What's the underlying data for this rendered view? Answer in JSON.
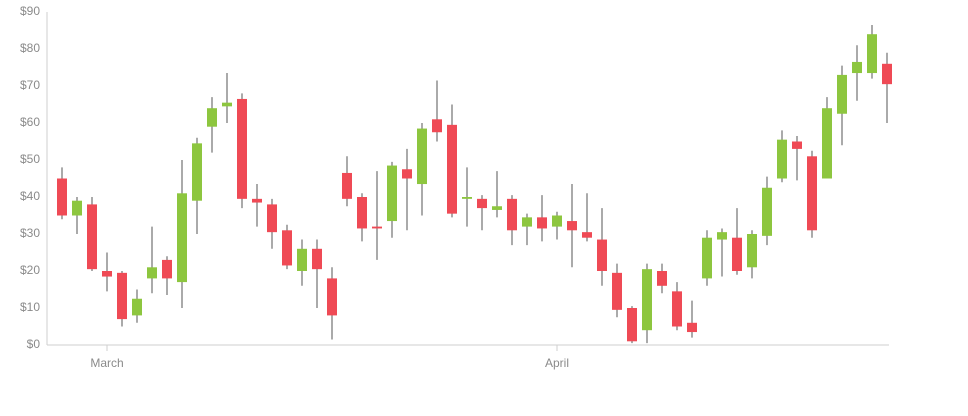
{
  "chart_data": {
    "type": "candlestick",
    "categories": [
      null,
      null,
      null,
      "March",
      null,
      null,
      null,
      null,
      null,
      null,
      null,
      null,
      null,
      null,
      null,
      null,
      null,
      null,
      null,
      null,
      null,
      null,
      null,
      null,
      null,
      null,
      null,
      null,
      null,
      null,
      null,
      null,
      null,
      "April",
      null,
      null,
      null,
      null,
      null,
      null,
      null,
      null,
      null,
      null,
      null,
      null,
      null,
      null,
      null,
      null,
      null,
      null,
      null,
      null,
      null,
      null
    ],
    "open": [
      45,
      35,
      38,
      20,
      19.5,
      8,
      18,
      23,
      17,
      39,
      59,
      64.5,
      66.5,
      39.5,
      38,
      31,
      20,
      26,
      18,
      46.5,
      40,
      32,
      33.5,
      47.5,
      43.5,
      61,
      59.5,
      39.5,
      39.5,
      36.5,
      39.5,
      32,
      34.5,
      32,
      33.5,
      30.5,
      28.5,
      19.5,
      10,
      4,
      20,
      14.5,
      6,
      18,
      28.5,
      29,
      21,
      29.5,
      45,
      55,
      51,
      45,
      62.5,
      73.5,
      73.5,
      76
    ],
    "high": [
      48,
      40,
      40,
      25,
      20,
      15,
      32,
      24,
      50,
      56,
      67,
      73.5,
      68,
      43.5,
      39.5,
      32.5,
      28.5,
      28.5,
      21,
      51,
      41,
      47,
      49.5,
      53,
      60,
      71.5,
      65,
      48,
      40.5,
      47,
      40.5,
      35.5,
      40.5,
      36,
      43.5,
      41,
      37,
      22,
      10.5,
      22,
      22,
      17,
      12,
      31,
      31.5,
      37,
      31,
      45.5,
      58,
      56.5,
      52.5,
      67,
      75.5,
      81,
      86.5,
      79
    ],
    "low": [
      34,
      30,
      20,
      14.5,
      5,
      6,
      14,
      13.5,
      10,
      30,
      52,
      60,
      37,
      32,
      26,
      20.5,
      16,
      10,
      1.5,
      37.5,
      28,
      23,
      29,
      31,
      35,
      55,
      34.5,
      32,
      31,
      34.5,
      27,
      27,
      28,
      28.5,
      21,
      28,
      16,
      7.5,
      0.5,
      0.5,
      14,
      4,
      2,
      16,
      18.5,
      19,
      18,
      27,
      44,
      44.5,
      29,
      45,
      54,
      66,
      72,
      60
    ],
    "close": [
      35,
      39,
      20.5,
      18.5,
      7,
      12.5,
      21,
      18,
      41,
      54.5,
      64,
      65.5,
      39.5,
      38.5,
      30.5,
      21.5,
      26,
      20.5,
      8,
      39.5,
      31.5,
      31.5,
      48.5,
      45,
      58.5,
      57.5,
      35.5,
      40,
      37,
      37.5,
      31,
      34.5,
      31.5,
      35,
      31,
      29,
      20,
      9.5,
      1,
      20.5,
      16,
      5,
      3.5,
      29,
      30.5,
      20,
      30,
      42.5,
      55.5,
      53,
      31,
      64,
      73,
      76.5,
      84,
      70.5
    ],
    "up_color": "#8dc63f",
    "down_color": "#ef4a55",
    "ylim": [
      0,
      90
    ],
    "yticks": [
      {
        "value": 0,
        "label": "$0"
      },
      {
        "value": 10,
        "label": "$10"
      },
      {
        "value": 20,
        "label": "$20"
      },
      {
        "value": 30,
        "label": "$30"
      },
      {
        "value": 40,
        "label": "$40"
      },
      {
        "value": 50,
        "label": "$50"
      },
      {
        "value": 60,
        "label": "$60"
      },
      {
        "value": 70,
        "label": "$70"
      },
      {
        "value": 80,
        "label": "$80"
      },
      {
        "value": 90,
        "label": "$90"
      }
    ],
    "grid": false
  }
}
